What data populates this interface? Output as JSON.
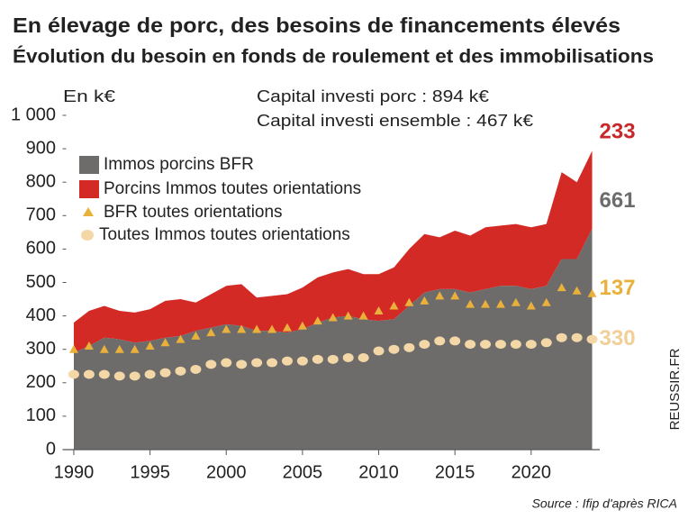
{
  "chart_data": {
    "type": "area",
    "title": "En élevage de porc, des besoins de financements élevés",
    "subtitle": "Évolution du besoin en fonds de roulement et des immobilisations",
    "y_label": "En k€",
    "annotations": [
      "Capital investi porc : 894 k€",
      "Capital investi ensemble : 467 k€"
    ],
    "source": "Source : Ifip d'après RICA",
    "watermark": "REUSSIR.FR",
    "x": [
      1990,
      1991,
      1992,
      1993,
      1994,
      1995,
      1996,
      1997,
      1998,
      1999,
      2000,
      2001,
      2002,
      2003,
      2004,
      2005,
      2006,
      2007,
      2008,
      2009,
      2010,
      2011,
      2012,
      2013,
      2014,
      2015,
      2016,
      2017,
      2018,
      2019,
      2020,
      2021,
      2022,
      2023,
      2024
    ],
    "xlim": [
      1989.5,
      2024.5
    ],
    "xticks": [
      1990,
      1995,
      2000,
      2005,
      2010,
      2015,
      2020
    ],
    "ylim": [
      0,
      1000
    ],
    "yticks": [
      0,
      100,
      200,
      300,
      400,
      500,
      600,
      700,
      800,
      900,
      {
        "value": 1000,
        "label": "1 000"
      }
    ],
    "grid": false,
    "series": [
      {
        "name": "Immos porcins BFR",
        "color": "#6e6c6b",
        "marker": "area",
        "values": [
          290,
          310,
          335,
          330,
          320,
          325,
          335,
          340,
          355,
          365,
          375,
          370,
          355,
          355,
          350,
          360,
          380,
          395,
          400,
          390,
          385,
          390,
          430,
          470,
          480,
          480,
          470,
          480,
          490,
          490,
          480,
          490,
          570,
          570,
          661
        ]
      },
      {
        "name": "Porcins Immos toutes orientations",
        "color": "#d32a26",
        "marker": "area",
        "values": [
          90,
          105,
          95,
          85,
          90,
          95,
          110,
          110,
          85,
          100,
          115,
          125,
          100,
          105,
          115,
          125,
          135,
          135,
          140,
          135,
          140,
          155,
          170,
          175,
          155,
          175,
          170,
          185,
          180,
          185,
          185,
          185,
          260,
          230,
          233
        ]
      },
      {
        "name": "BFR toutes orientations",
        "color": "#e9b13b",
        "marker": "triangle",
        "values": [
          75,
          85,
          75,
          80,
          80,
          85,
          90,
          95,
          100,
          95,
          100,
          105,
          100,
          100,
          100,
          105,
          115,
          125,
          125,
          125,
          120,
          130,
          135,
          130,
          135,
          135,
          120,
          120,
          120,
          125,
          115,
          120,
          150,
          140,
          137
        ]
      },
      {
        "name": "Toutes Immos toutes orientations",
        "color": "#f4d7a6",
        "marker": "dot",
        "values": [
          225,
          225,
          225,
          220,
          220,
          225,
          230,
          235,
          240,
          255,
          260,
          255,
          260,
          260,
          265,
          265,
          270,
          270,
          275,
          275,
          295,
          300,
          305,
          315,
          325,
          325,
          315,
          315,
          315,
          315,
          315,
          320,
          335,
          335,
          330
        ]
      }
    ]
  }
}
